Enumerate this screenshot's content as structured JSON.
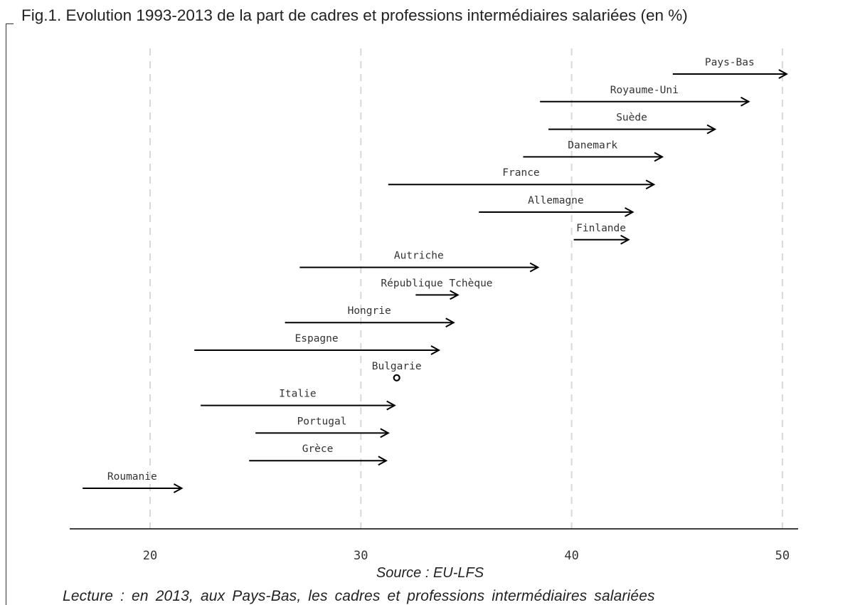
{
  "title": "Fig.1. Evolution 1993-2013 de la part de cadres et professions intermédiaires salariées (en %)",
  "source": "Source : EU-LFS",
  "lecture": "Lecture : en 2013, aux Pays-Bas, les cadres et professions intermédiaires salariées",
  "chart_data": {
    "type": "arrow",
    "xlim": [
      16.3,
      50.8
    ],
    "x_ticks": [
      20,
      30,
      40,
      50
    ],
    "x_tick_labels": [
      "20",
      "30",
      "40",
      "50"
    ],
    "grid": "vertical dashed at ticks",
    "series": [
      {
        "country": "Pays-Bas",
        "start": 44.8,
        "end": 50.2
      },
      {
        "country": "Royaume-Uni",
        "start": 38.5,
        "end": 48.4
      },
      {
        "country": "Suède",
        "start": 38.9,
        "end": 46.8
      },
      {
        "country": "Danemark",
        "start": 37.7,
        "end": 44.3
      },
      {
        "country": "France",
        "start": 31.3,
        "end": 43.9
      },
      {
        "country": "Allemagne",
        "start": 35.6,
        "end": 42.9
      },
      {
        "country": "Finlande",
        "start": 40.1,
        "end": 42.7
      },
      {
        "country": "Autriche",
        "start": 27.1,
        "end": 38.4
      },
      {
        "country": "République Tchèque",
        "start": 32.6,
        "end": 34.6
      },
      {
        "country": "Hongrie",
        "start": 26.4,
        "end": 34.4
      },
      {
        "country": "Espagne",
        "start": 22.1,
        "end": 33.7
      },
      {
        "country": "Bulgarie",
        "start": 31.7,
        "end": 31.7
      },
      {
        "country": "Italie",
        "start": 22.4,
        "end": 31.6
      },
      {
        "country": "Portugal",
        "start": 25.0,
        "end": 31.3
      },
      {
        "country": "Grèce",
        "start": 24.7,
        "end": 31.2
      },
      {
        "country": "Roumanie",
        "start": 16.8,
        "end": 21.5
      }
    ]
  }
}
